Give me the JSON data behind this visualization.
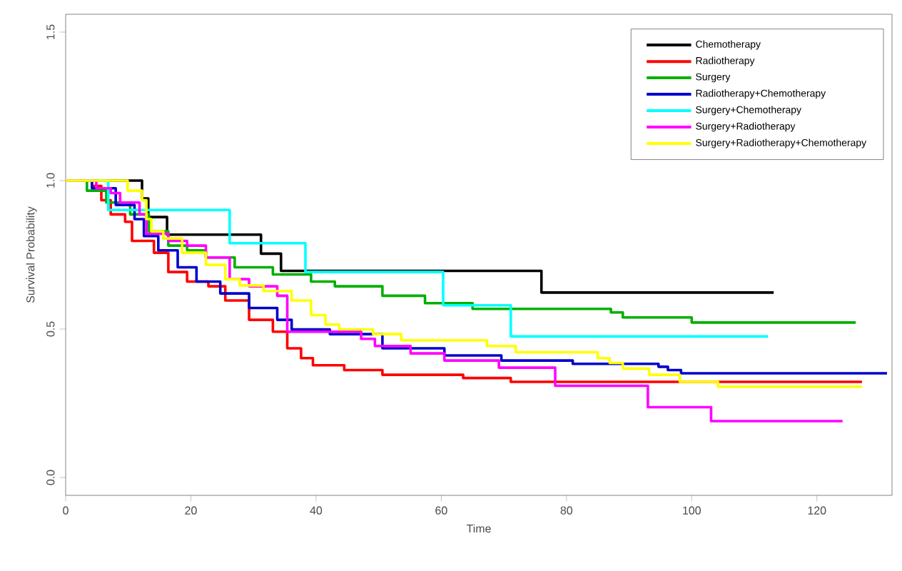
{
  "chart_data": {
    "type": "step",
    "xlabel": "Time",
    "ylabel": "Survival Probability",
    "xlim": [
      0,
      132
    ],
    "ylim": [
      -0.06,
      1.56
    ],
    "xticks": [
      0,
      20,
      40,
      60,
      80,
      100,
      120
    ],
    "yticks": [
      {
        "value": 0,
        "label": "0.0"
      },
      {
        "value": 0.5,
        "label": "0.5"
      },
      {
        "value": 1,
        "label": "1.0"
      },
      {
        "value": 1.5,
        "label": "1.5"
      }
    ],
    "legend": "top right",
    "series": [
      {
        "name": "Chemotherapy",
        "color": "#000000",
        "x": [
          0,
          12.2,
          13.2,
          16.2,
          31.2,
          34.4,
          76,
          113.1
        ],
        "values": [
          1,
          0.94,
          0.877,
          0.818,
          0.754,
          0.696,
          0.623,
          0.623
        ]
      },
      {
        "name": "Radiotherapy",
        "color": "#ff0000",
        "x": [
          0,
          4.2,
          5.7,
          7.2,
          9.5,
          10.6,
          14.1,
          16.4,
          19.4,
          22.8,
          25.5,
          29.3,
          33.1,
          35.4,
          37.6,
          39.5,
          44.5,
          50.6,
          63.5,
          71.1,
          127.2
        ],
        "values": [
          1,
          0.982,
          0.934,
          0.886,
          0.861,
          0.797,
          0.757,
          0.692,
          0.66,
          0.644,
          0.596,
          0.531,
          0.491,
          0.435,
          0.402,
          0.378,
          0.362,
          0.346,
          0.335,
          0.322,
          0.322
        ]
      },
      {
        "name": "Surgery",
        "color": "#00b000",
        "x": [
          0,
          3.4,
          6.5,
          10.3,
          13.3,
          16.4,
          19.4,
          22.4,
          27,
          33.1,
          39.2,
          43,
          50.6,
          57.4,
          65,
          87.1,
          89,
          100,
          126.2
        ],
        "values": [
          1,
          0.966,
          0.926,
          0.886,
          0.829,
          0.781,
          0.765,
          0.741,
          0.708,
          0.684,
          0.66,
          0.644,
          0.612,
          0.587,
          0.568,
          0.556,
          0.539,
          0.522,
          0.522
        ]
      },
      {
        "name": "Radiotherapy+Chemotherapy",
        "color": "#0000cc",
        "x": [
          0,
          4.2,
          8,
          11,
          12.5,
          14.8,
          17.9,
          20.9,
          24.7,
          29.3,
          33.8,
          36.1,
          42.2,
          50.6,
          60.5,
          69.6,
          81,
          94.7,
          96.2,
          98.3,
          131.2
        ],
        "values": [
          1,
          0.974,
          0.918,
          0.87,
          0.813,
          0.765,
          0.708,
          0.66,
          0.62,
          0.571,
          0.531,
          0.499,
          0.483,
          0.435,
          0.411,
          0.394,
          0.383,
          0.373,
          0.362,
          0.351,
          0.351
        ]
      },
      {
        "name": "Surgery+Chemotherapy",
        "color": "#00ffff",
        "x": [
          0,
          6.8,
          26.2,
          38.3,
          60.3,
          71.1,
          112.2
        ],
        "values": [
          1,
          0.901,
          0.789,
          0.692,
          0.58,
          0.475,
          0.475
        ]
      },
      {
        "name": "Surgery+Radiotherapy",
        "color": "#ff00ff",
        "x": [
          0,
          4.9,
          7.2,
          8.7,
          11.8,
          12.9,
          16.4,
          19.4,
          22.4,
          26.2,
          29.3,
          33.8,
          35.4,
          47.2,
          49.4,
          55.1,
          60.5,
          69.2,
          78.2,
          93,
          103.1,
          124.1
        ],
        "values": [
          1,
          0.974,
          0.958,
          0.926,
          0.886,
          0.821,
          0.797,
          0.781,
          0.741,
          0.668,
          0.644,
          0.612,
          0.491,
          0.467,
          0.443,
          0.418,
          0.394,
          0.37,
          0.309,
          0.237,
          0.19,
          0.19
        ]
      },
      {
        "name": "Surgery+Radiotherapy+Chemotherapy",
        "color": "#ffff00",
        "x": [
          0,
          9.9,
          12.2,
          12.9,
          13.7,
          15.6,
          18.6,
          22.4,
          25.5,
          27.8,
          31.6,
          36.1,
          39.2,
          41.5,
          43.7,
          49.1,
          53.6,
          67.3,
          71.9,
          85,
          86.9,
          89,
          93.2,
          98.1,
          104.2,
          127.2
        ],
        "values": [
          1,
          0.966,
          0.934,
          0.87,
          0.829,
          0.805,
          0.757,
          0.716,
          0.668,
          0.647,
          0.628,
          0.596,
          0.547,
          0.515,
          0.499,
          0.483,
          0.462,
          0.443,
          0.422,
          0.402,
          0.386,
          0.367,
          0.346,
          0.322,
          0.306,
          0.306
        ]
      }
    ]
  }
}
